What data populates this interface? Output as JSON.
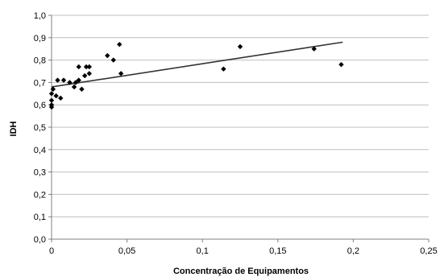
{
  "chart_data": {
    "type": "scatter",
    "xlabel": "Concentração de Equipamentos",
    "ylabel": "IDH",
    "xlim": [
      0,
      0.25
    ],
    "ylim": [
      0,
      1.0
    ],
    "x_ticks": [
      "0",
      "0,05",
      "0,1",
      "0,15",
      "0,2",
      "0,25"
    ],
    "y_ticks": [
      "0,0",
      "0,1",
      "0,2",
      "0,3",
      "0,4",
      "0,5",
      "0,6",
      "0,7",
      "0,8",
      "0,9",
      "1,0"
    ],
    "grid": "horizontal",
    "legend": "none",
    "points": [
      {
        "x": 0.0,
        "y": 0.59
      },
      {
        "x": 0.0,
        "y": 0.6
      },
      {
        "x": 0.0,
        "y": 0.62
      },
      {
        "x": 0.0,
        "y": 0.65
      },
      {
        "x": 0.001,
        "y": 0.67
      },
      {
        "x": 0.003,
        "y": 0.64
      },
      {
        "x": 0.004,
        "y": 0.71
      },
      {
        "x": 0.006,
        "y": 0.63
      },
      {
        "x": 0.008,
        "y": 0.71
      },
      {
        "x": 0.012,
        "y": 0.7
      },
      {
        "x": 0.015,
        "y": 0.68
      },
      {
        "x": 0.016,
        "y": 0.7
      },
      {
        "x": 0.018,
        "y": 0.71
      },
      {
        "x": 0.018,
        "y": 0.77
      },
      {
        "x": 0.02,
        "y": 0.67
      },
      {
        "x": 0.022,
        "y": 0.73
      },
      {
        "x": 0.023,
        "y": 0.77
      },
      {
        "x": 0.025,
        "y": 0.74
      },
      {
        "x": 0.025,
        "y": 0.77
      },
      {
        "x": 0.037,
        "y": 0.82
      },
      {
        "x": 0.041,
        "y": 0.8
      },
      {
        "x": 0.045,
        "y": 0.87
      },
      {
        "x": 0.046,
        "y": 0.74
      },
      {
        "x": 0.114,
        "y": 0.76
      },
      {
        "x": 0.125,
        "y": 0.86
      },
      {
        "x": 0.174,
        "y": 0.85
      },
      {
        "x": 0.192,
        "y": 0.78
      }
    ],
    "trendline": {
      "x": [
        0.0,
        0.193
      ],
      "y": [
        0.68,
        0.88
      ]
    },
    "colors": {
      "points": "#000000",
      "trendline": "#333333",
      "grid": "#bfbfbf",
      "axis": "#808080"
    }
  }
}
